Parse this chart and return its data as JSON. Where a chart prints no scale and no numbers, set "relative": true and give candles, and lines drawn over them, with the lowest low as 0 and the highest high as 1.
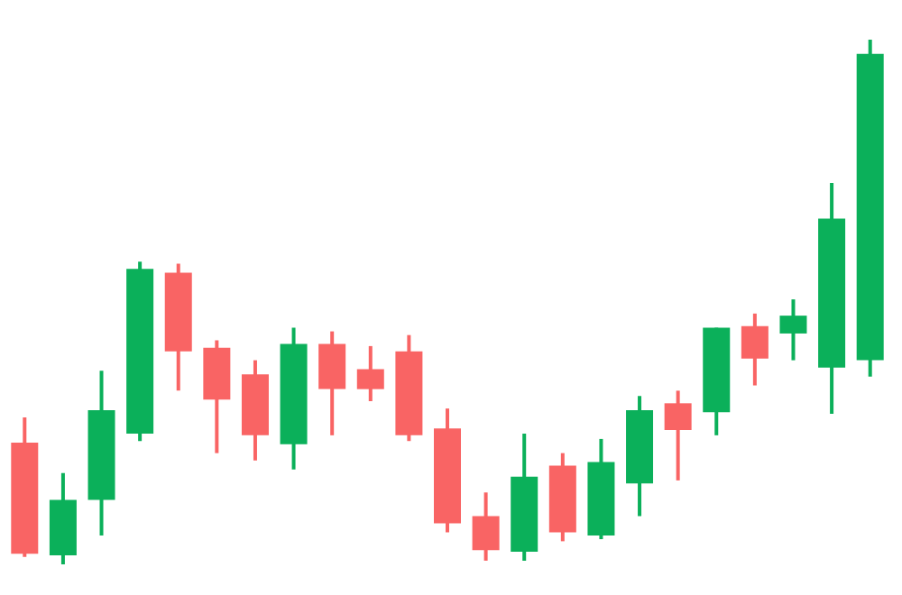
{
  "chart_data": {
    "type": "candlestick",
    "relative": true,
    "categories": [
      null,
      null,
      null,
      null,
      null,
      null,
      null,
      null,
      null,
      null,
      null,
      null,
      null,
      null,
      null,
      null,
      null,
      null,
      null,
      null,
      null,
      null,
      null
    ],
    "ohlc": [
      [
        0.232,
        0.28,
        0.014,
        0.02
      ],
      [
        0.017,
        0.174,
        0,
        0.123
      ],
      [
        0.123,
        0.369,
        0.055,
        0.294
      ],
      [
        0.249,
        0.577,
        0.235,
        0.563
      ],
      [
        0.556,
        0.573,
        0.331,
        0.406
      ],
      [
        0.413,
        0.427,
        0.212,
        0.314
      ],
      [
        0.362,
        0.389,
        0.198,
        0.246
      ],
      [
        0.229,
        0.451,
        0.181,
        0.42
      ],
      [
        0.42,
        0.444,
        0.246,
        0.334
      ],
      [
        0.372,
        0.416,
        0.311,
        0.334
      ],
      [
        0.406,
        0.437,
        0.235,
        0.246
      ],
      [
        0.259,
        0.297,
        0.061,
        0.078
      ],
      [
        0.092,
        0.137,
        0.007,
        0.027
      ],
      [
        0.024,
        0.249,
        0.007,
        0.167
      ],
      [
        0.188,
        0.212,
        0.044,
        0.061
      ],
      [
        0.055,
        0.239,
        0.048,
        0.195
      ],
      [
        0.154,
        0.321,
        0.092,
        0.294
      ],
      [
        0.307,
        0.331,
        0.16,
        0.256
      ],
      [
        0.29,
        0.451,
        0.246,
        0.451
      ],
      [
        0.454,
        0.478,
        0.341,
        0.392
      ],
      [
        0.44,
        0.505,
        0.389,
        0.474
      ],
      [
        0.375,
        0.727,
        0.287,
        0.659
      ],
      [
        0.389,
        1,
        0.358,
        0.973
      ]
    ],
    "colors": [
      "#f96464",
      "#0bb05a",
      "#0bb05a",
      "#0bb05a",
      "#f96464",
      "#f96464",
      "#f96464",
      "#0bb05a",
      "#f96464",
      "#f96464",
      "#f96464",
      "#f96464",
      "#f96464",
      "#0bb05a",
      "#f96464",
      "#0bb05a",
      "#0bb05a",
      "#f96464",
      "#0bb05a",
      "#f96464",
      "#0bb05a",
      "#0bb05a",
      "#0bb05a"
    ]
  }
}
